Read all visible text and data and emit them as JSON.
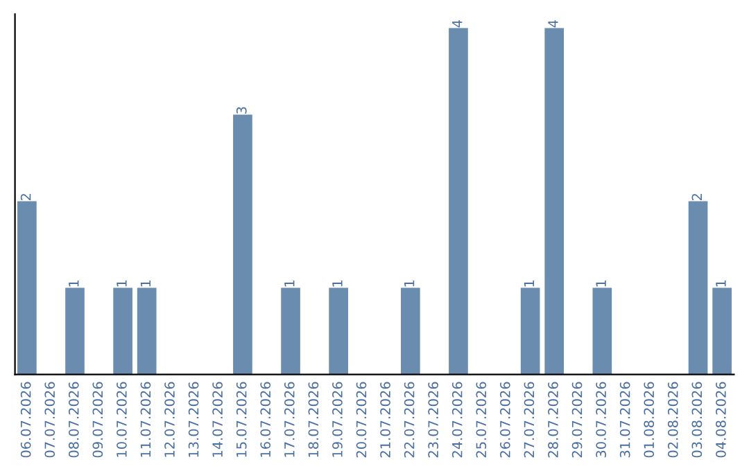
{
  "chart_data": {
    "type": "bar",
    "categories": [
      "06.07.2026",
      "07.07.2026",
      "08.07.2026",
      "09.07.2026",
      "10.07.2026",
      "11.07.2026",
      "12.07.2026",
      "13.07.2026",
      "14.07.2026",
      "15.07.2026",
      "16.07.2026",
      "17.07.2026",
      "18.07.2026",
      "19.07.2026",
      "20.07.2026",
      "21.07.2026",
      "22.07.2026",
      "23.07.2026",
      "24.07.2026",
      "25.07.2026",
      "26.07.2026",
      "27.07.2026",
      "28.07.2026",
      "29.07.2026",
      "30.07.2026",
      "31.07.2026",
      "01.08.2026",
      "02.08.2026",
      "03.08.2026",
      "04.08.2026"
    ],
    "values": [
      2,
      0,
      1,
      0,
      1,
      1,
      0,
      0,
      0,
      3,
      0,
      1,
      0,
      1,
      0,
      0,
      1,
      0,
      4,
      0,
      0,
      1,
      4,
      0,
      1,
      0,
      0,
      0,
      2,
      1
    ],
    "value_labels": [
      "2",
      null,
      "1",
      null,
      "1",
      "1",
      null,
      null,
      null,
      "3",
      null,
      "1",
      null,
      "1",
      null,
      null,
      "1",
      null,
      "4",
      null,
      null,
      "1",
      "4",
      null,
      "1",
      null,
      null,
      null,
      "2",
      "1"
    ],
    "color": "#6a8caf",
    "ylim": [
      0,
      4.16
    ],
    "grid": false,
    "legend": false
  }
}
